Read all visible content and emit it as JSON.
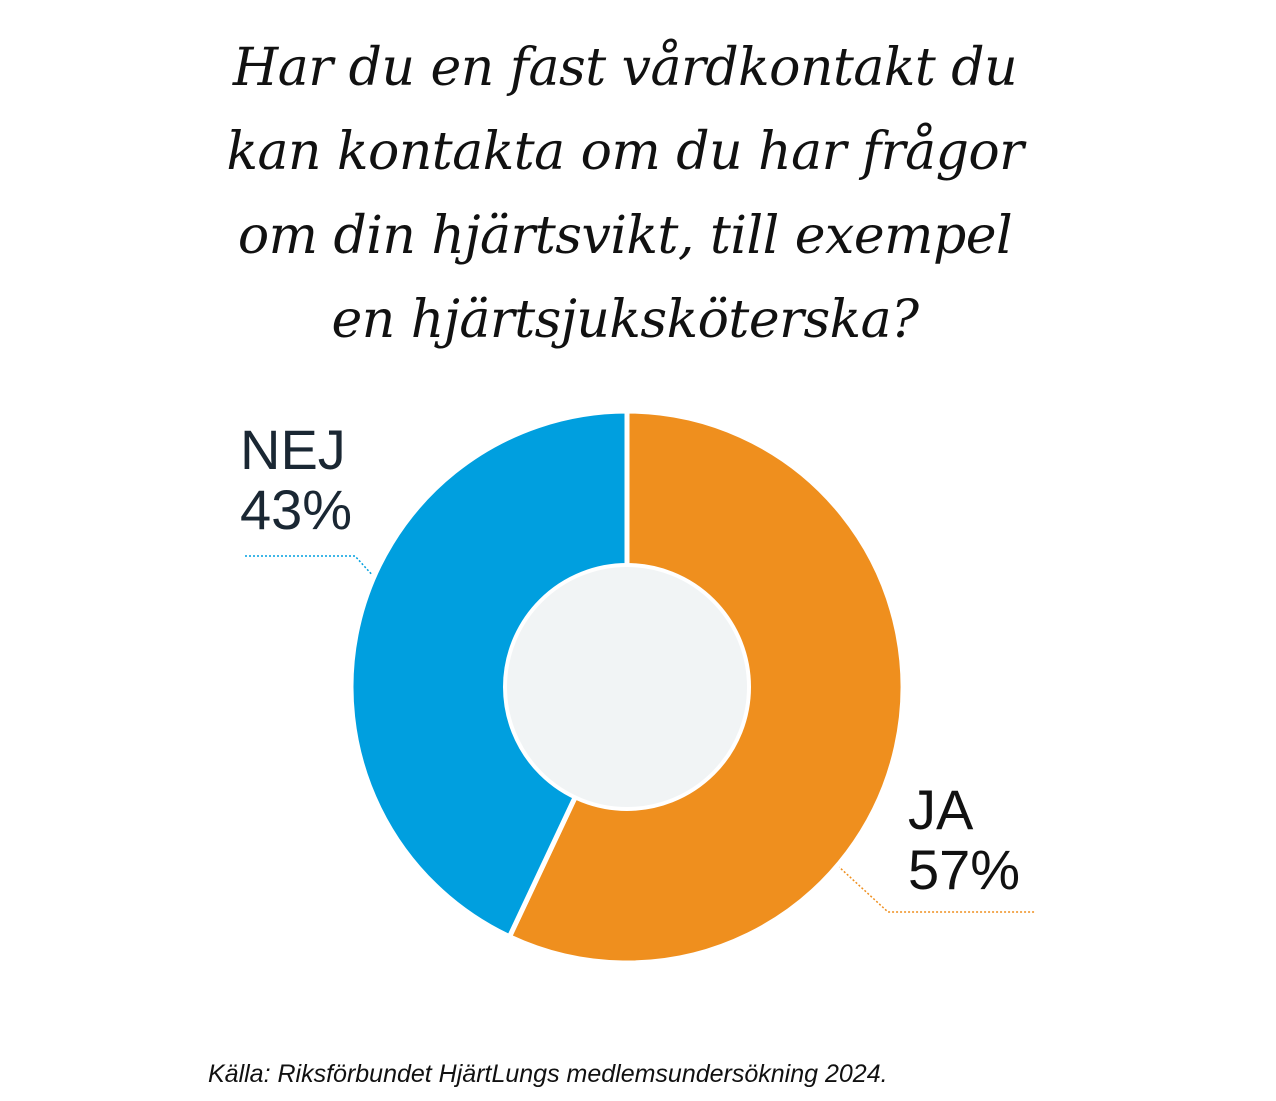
{
  "chart_data": {
    "type": "pie",
    "variant": "donut",
    "title": "Har du en fast vårdkontakt du kan kontakta om du har frågor om din hjärtsvikt, till exempel en hjärtsjuksköterska?",
    "title_lines": [
      "Har du en fast vårdkontakt du",
      "kan kontakta om du har frågor",
      "om din hjärtsvikt, till exempel",
      "en hjärtsjuksköterska?"
    ],
    "slices": [
      {
        "label": "JA",
        "value": 57,
        "value_label": "57%",
        "color": "#EF8F1E"
      },
      {
        "label": "NEJ",
        "value": 43,
        "value_label": "43%",
        "color": "#009FDF"
      }
    ],
    "center_color": "#F1F4F5",
    "source": "Källa: Riksförbundet HjärtLungs medlemsundersökning 2024."
  }
}
